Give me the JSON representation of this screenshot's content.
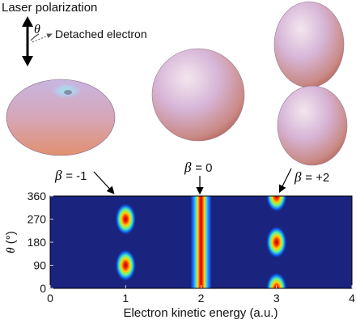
{
  "legend": {
    "laser_polarization": "Laser polarization",
    "theta_symbol": "θ",
    "detached_electron": "Detached electron"
  },
  "shapes": [
    {
      "beta_symbol": "β",
      "beta_value": "= -1",
      "form": "torus"
    },
    {
      "beta_symbol": "β",
      "beta_value": "= 0",
      "form": "sphere"
    },
    {
      "beta_symbol": "β",
      "beta_value": "= +2",
      "form": "dumbbell"
    }
  ],
  "heatmap": {
    "ylabel_symbol": "θ",
    "ylabel_unit": "(°)",
    "xlabel": "Electron kinetic energy (a.u.)",
    "x_ticks": [
      "0",
      "1",
      "2",
      "3",
      "4"
    ],
    "y_ticks": [
      "0",
      "90",
      "180",
      "270",
      "360"
    ],
    "xlim": [
      0,
      4
    ],
    "ylim": [
      0,
      360
    ],
    "background_color": "#1a237e",
    "blobs": [
      {
        "energy": 1,
        "theta": 90
      },
      {
        "energy": 1,
        "theta": 270
      },
      {
        "energy": 3,
        "theta": 0
      },
      {
        "energy": 3,
        "theta": 180
      },
      {
        "energy": 3,
        "theta": 360
      }
    ],
    "band": {
      "energy": 2
    }
  }
}
